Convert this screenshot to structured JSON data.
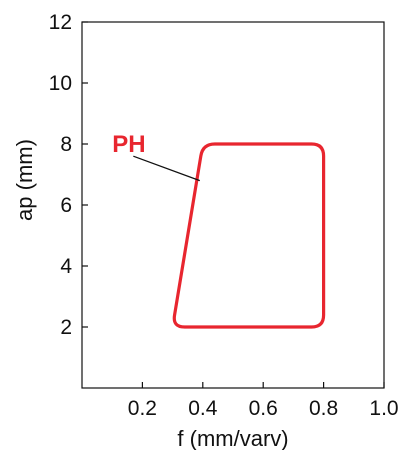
{
  "chart_data": {
    "type": "area",
    "title": "",
    "xlabel": "f (mm/varv)",
    "ylabel": "ap (mm)",
    "xlim": [
      0.0,
      1.0
    ],
    "ylim": [
      0,
      12
    ],
    "x_ticks": [
      0.2,
      0.4,
      0.6,
      0.8,
      1.0
    ],
    "x_tick_labels": [
      "0.2",
      "0.4",
      "0.6",
      "0.8",
      "1.0"
    ],
    "y_ticks": [
      2,
      4,
      6,
      8,
      10,
      12
    ],
    "y_tick_labels": [
      "2",
      "4",
      "6",
      "8",
      "10",
      "12"
    ],
    "grid": false,
    "series": [
      {
        "name": "PH",
        "color": "#e8262f",
        "closed": true,
        "points": [
          {
            "x": 0.4,
            "y": 8
          },
          {
            "x": 0.8,
            "y": 8
          },
          {
            "x": 0.8,
            "y": 2
          },
          {
            "x": 0.3,
            "y": 2
          }
        ]
      }
    ],
    "annotations": [
      {
        "text": "PH",
        "color": "#e8262f",
        "text_at": {
          "x": 0.1,
          "y": 8.0
        },
        "leader_from": {
          "x": 0.17,
          "y": 7.6
        },
        "leader_to": {
          "x": 0.39,
          "y": 6.8
        }
      }
    ]
  }
}
